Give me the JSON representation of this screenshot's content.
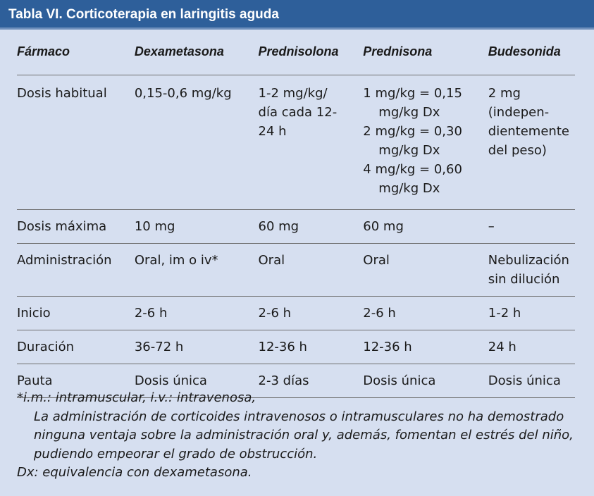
{
  "title": "Tabla VI.  Corticoterapia en laringitis aguda",
  "headers": [
    "Fármaco",
    "Dexametasona",
    "Prednisolona",
    "Prednisona",
    "Budesonida"
  ],
  "rows": [
    {
      "label": "Dosis habitual",
      "cells": [
        "0,15-0,6 mg/kg",
        "1-2 mg/kg/\ndía cada 12-\n24 h",
        "",
        "2 mg\n(indepen-\ndientemente\ndel peso)"
      ],
      "prednisona_lines": [
        "1 mg/kg = 0,15 mg/kg Dx",
        "2 mg/kg = 0,30 mg/kg Dx",
        "4 mg/kg = 0,60 mg/kg Dx"
      ]
    },
    {
      "label": "Dosis máxima",
      "cells": [
        "10 mg",
        "60 mg",
        "60 mg",
        "–"
      ]
    },
    {
      "label": "Administración",
      "cells": [
        "Oral, im o iv*",
        "Oral",
        "Oral",
        "Nebulización\nsin dilución"
      ]
    },
    {
      "label": "Inicio",
      "cells": [
        "2-6 h",
        "2-6 h",
        "2-6 h",
        "1-2 h"
      ]
    },
    {
      "label": "Duración",
      "cells": [
        "36-72 h",
        "12-36 h",
        "12-36 h",
        "24 h"
      ]
    },
    {
      "label": "Pauta",
      "cells": [
        "Dosis única",
        "2-3 días",
        "Dosis única",
        "Dosis única"
      ]
    }
  ],
  "notes": {
    "line1": "*i.m.: intramuscular,  i.v.: intravenosa,",
    "line2": "La administración de corticoides intravenosos o intramusculares no ha demostrado ninguna ventaja sobre la administración oral y, además, fomentan el estrés del niño, pudiendo empeorar el grado de obstrucción.",
    "line3": "Dx: equivalencia con dexametasona."
  }
}
